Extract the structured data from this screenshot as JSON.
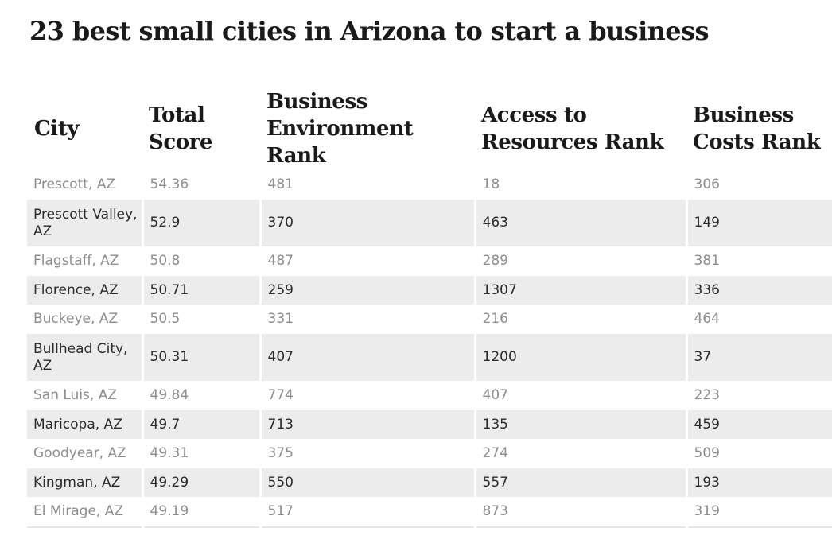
{
  "title": "23 best small cities in Arizona to start a business",
  "table": {
    "columns": [
      "City",
      "Total Score",
      "Business Environment Rank",
      "Access to Resources Rank",
      "Business Costs Rank"
    ],
    "rows": [
      {
        "city": "Prescott, AZ",
        "total_score": "54.36",
        "business_environment_rank": "481",
        "access_to_resources_rank": "18",
        "business_costs_rank": "306"
      },
      {
        "city": "Prescott Valley, AZ",
        "total_score": "52.9",
        "business_environment_rank": "370",
        "access_to_resources_rank": "463",
        "business_costs_rank": "149"
      },
      {
        "city": "Flagstaff, AZ",
        "total_score": "50.8",
        "business_environment_rank": "487",
        "access_to_resources_rank": "289",
        "business_costs_rank": "381"
      },
      {
        "city": "Florence, AZ",
        "total_score": "50.71",
        "business_environment_rank": "259",
        "access_to_resources_rank": "1307",
        "business_costs_rank": "336"
      },
      {
        "city": "Buckeye, AZ",
        "total_score": "50.5",
        "business_environment_rank": "331",
        "access_to_resources_rank": "216",
        "business_costs_rank": "464"
      },
      {
        "city": "Bullhead City, AZ",
        "total_score": "50.31",
        "business_environment_rank": "407",
        "access_to_resources_rank": "1200",
        "business_costs_rank": "37"
      },
      {
        "city": "San Luis, AZ",
        "total_score": "49.84",
        "business_environment_rank": "774",
        "access_to_resources_rank": "407",
        "business_costs_rank": "223"
      },
      {
        "city": "Maricopa, AZ",
        "total_score": "49.7",
        "business_environment_rank": "713",
        "access_to_resources_rank": "135",
        "business_costs_rank": "459"
      },
      {
        "city": "Goodyear, AZ",
        "total_score": "49.31",
        "business_environment_rank": "375",
        "access_to_resources_rank": "274",
        "business_costs_rank": "509"
      },
      {
        "city": "Kingman, AZ",
        "total_score": "49.29",
        "business_environment_rank": "550",
        "access_to_resources_rank": "557",
        "business_costs_rank": "193"
      },
      {
        "city": "El Mirage, AZ",
        "total_score": "49.19",
        "business_environment_rank": "517",
        "access_to_resources_rank": "873",
        "business_costs_rank": "319"
      }
    ]
  },
  "colors": {
    "shaded_row": "#ececec",
    "muted_text": "#8c8c8c",
    "dark_text": "#2b2b2b",
    "heading_text": "#1a1a1a"
  }
}
